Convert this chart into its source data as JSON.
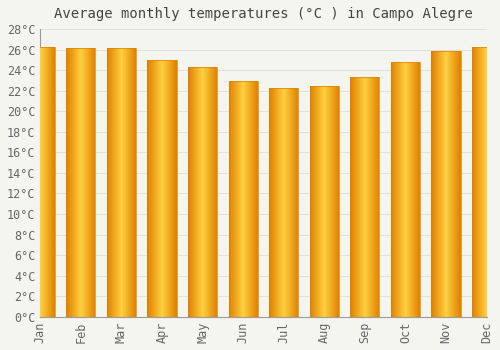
{
  "months": [
    "Jan",
    "Feb",
    "Mar",
    "Apr",
    "May",
    "Jun",
    "Jul",
    "Aug",
    "Sep",
    "Oct",
    "Nov",
    "Dec"
  ],
  "values": [
    26.3,
    26.2,
    26.2,
    25.0,
    24.3,
    22.9,
    22.3,
    22.5,
    23.3,
    24.8,
    25.9,
    26.3
  ],
  "bar_color_light": "#FFD070",
  "bar_color_main": "#FFA500",
  "bar_color_dark": "#E08000",
  "title": "Average monthly temperatures (°C ) in Campo Alegre",
  "ylim": [
    0,
    28
  ],
  "ytick_step": 2,
  "background_color": "#F5F5F0",
  "plot_bg_color": "#F5F5F0",
  "grid_color": "#E0E0E0",
  "title_fontsize": 10,
  "tick_fontsize": 8.5,
  "font_family": "monospace",
  "tick_color": "#666666",
  "spine_color": "#999999"
}
